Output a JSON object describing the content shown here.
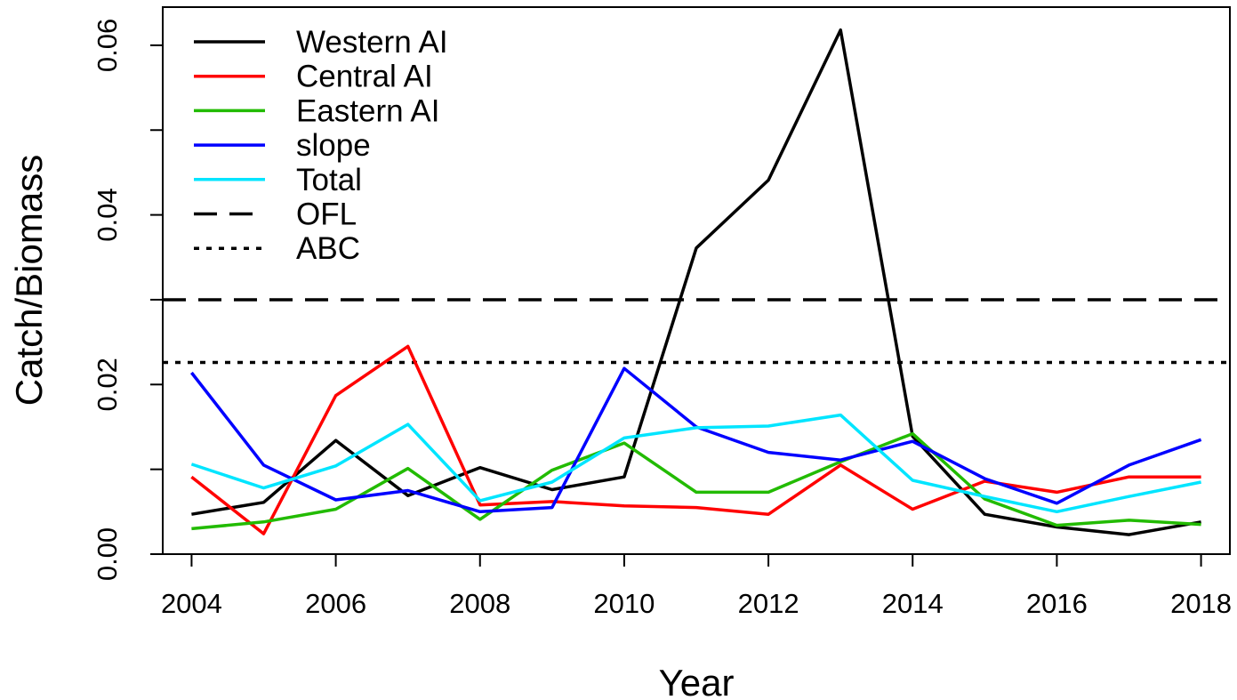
{
  "chart_data": {
    "type": "line",
    "xlabel": "Year",
    "ylabel": "Catch/Biomass",
    "xlim": [
      2003.6,
      2018.4
    ],
    "ylim": [
      0.0,
      0.0645
    ],
    "x_ticks": [
      2004,
      2006,
      2008,
      2010,
      2012,
      2014,
      2016,
      2018
    ],
    "x_tick_labels": [
      "2004",
      "2006",
      "2008",
      "2010",
      "2012",
      "2014",
      "2016",
      "2018"
    ],
    "y_ticks": [
      0.0,
      0.01,
      0.02,
      0.03,
      0.04,
      0.05,
      0.06
    ],
    "y_tick_labels": [
      "0.00",
      "",
      "0.02",
      "",
      "0.04",
      "",
      "0.06"
    ],
    "grid": false,
    "legend_position": "top-left",
    "x": [
      2004,
      2005,
      2006,
      2007,
      2008,
      2009,
      2010,
      2011,
      2012,
      2013,
      2014,
      2015,
      2016,
      2017,
      2018
    ],
    "series": [
      {
        "name": "Western AI",
        "color": "#000000",
        "dash": "solid",
        "values": [
          0.0047,
          0.0061,
          0.0134,
          0.0069,
          0.0102,
          0.0076,
          0.0091,
          0.0361,
          0.0441,
          0.0618,
          0.0139,
          0.0047,
          0.0032,
          0.0023,
          0.0038
        ]
      },
      {
        "name": "Central AI",
        "color": "#ff0000",
        "dash": "solid",
        "values": [
          0.0091,
          0.0024,
          0.0187,
          0.0245,
          0.0058,
          0.0062,
          0.0057,
          0.0055,
          0.0047,
          0.0105,
          0.0053,
          0.0086,
          0.0073,
          0.0091,
          0.0091
        ]
      },
      {
        "name": "Eastern AI",
        "color": "#22bb00",
        "dash": "solid",
        "values": [
          0.003,
          0.0038,
          0.0053,
          0.0101,
          0.0041,
          0.0099,
          0.0131,
          0.0073,
          0.0073,
          0.0109,
          0.0142,
          0.0065,
          0.0034,
          0.004,
          0.0035
        ]
      },
      {
        "name": "slope",
        "color": "#0000ff",
        "dash": "solid",
        "values": [
          0.0214,
          0.0105,
          0.0064,
          0.0075,
          0.005,
          0.0055,
          0.0219,
          0.015,
          0.012,
          0.0111,
          0.0133,
          0.0089,
          0.006,
          0.0105,
          0.0135
        ]
      },
      {
        "name": "Total",
        "color": "#00e5ff",
        "dash": "solid",
        "values": [
          0.0106,
          0.0078,
          0.0104,
          0.0153,
          0.0063,
          0.0085,
          0.0137,
          0.0149,
          0.0151,
          0.0164,
          0.0087,
          0.0068,
          0.005,
          0.0068,
          0.0085
        ]
      }
    ],
    "reference_lines": [
      {
        "name": "OFL",
        "y": 0.03,
        "color": "#000000",
        "dash": "dashed"
      },
      {
        "name": "ABC",
        "y": 0.0226,
        "color": "#000000",
        "dash": "dotted"
      }
    ],
    "legend": [
      "Western AI",
      "Central AI",
      "Eastern AI",
      "slope",
      "Total",
      "OFL",
      "ABC"
    ]
  }
}
